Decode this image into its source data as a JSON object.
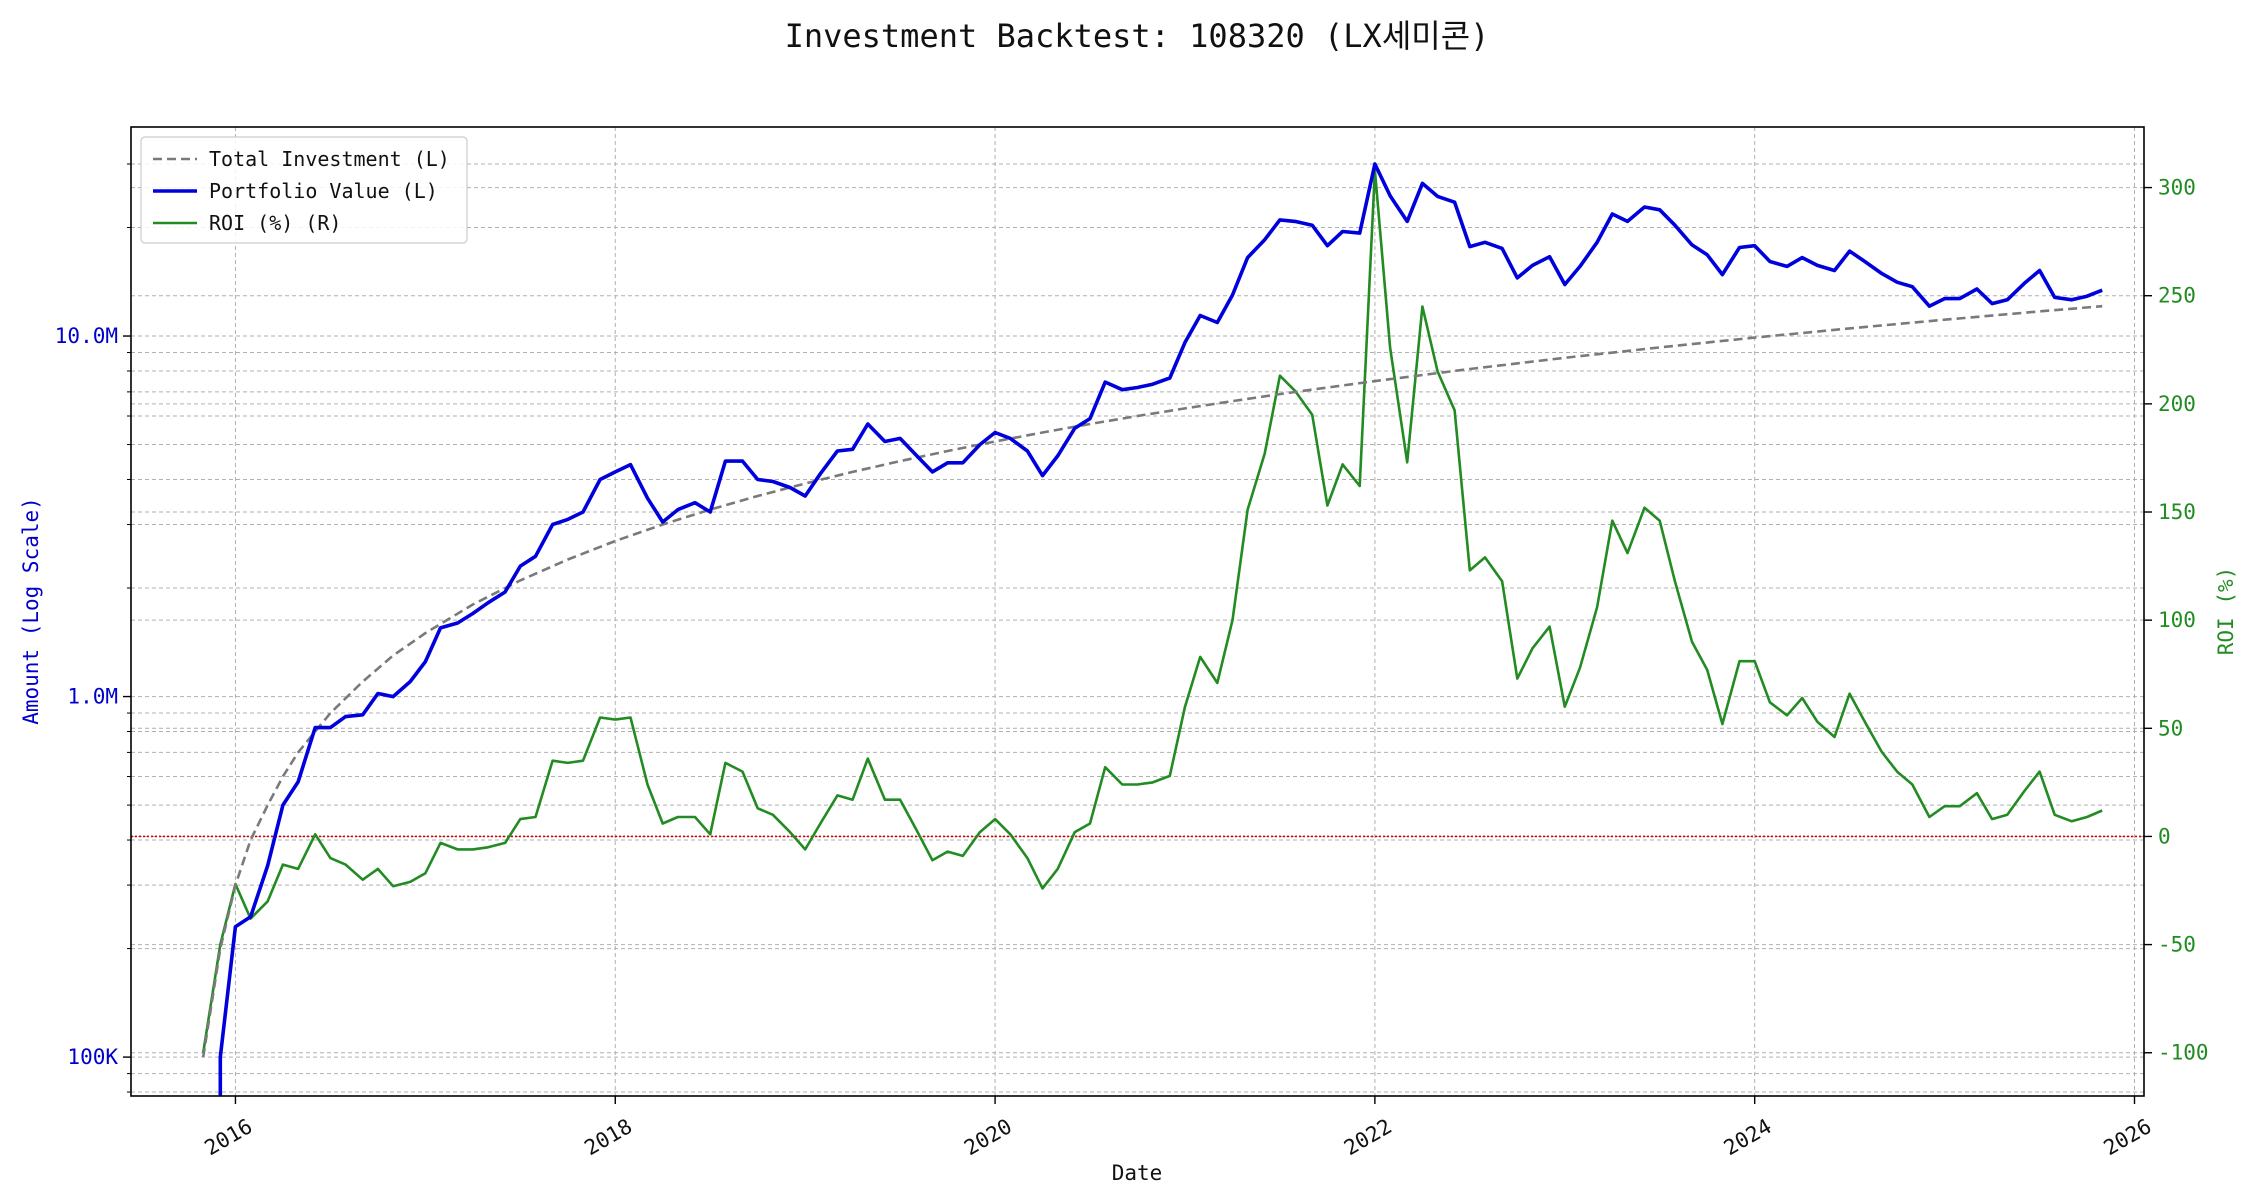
{
  "chart_data": {
    "type": "line",
    "title": "Investment Backtest: 108320 (LX세미콘)",
    "xlabel": "Date",
    "ylabel_left": "Amount (Log Scale)",
    "ylabel_right": "ROI (%)",
    "left_scale": "log",
    "xlim": [
      2015.45,
      2026.05
    ],
    "ylim_left": [
      78000,
      38000000
    ],
    "ylim_right": [
      -120,
      328
    ],
    "x_ticks": [
      2016,
      2018,
      2020,
      2022,
      2024,
      2026
    ],
    "x_tick_labels": [
      "2016",
      "2018",
      "2020",
      "2022",
      "2024",
      "2026"
    ],
    "y_left_ticks": [
      100000,
      1000000,
      10000000
    ],
    "y_left_tick_labels": [
      "100K",
      "1.0M",
      "10.0M"
    ],
    "y_right_ticks": [
      -100,
      -50,
      0,
      50,
      100,
      150,
      200,
      250,
      300
    ],
    "y_right_tick_labels": [
      "-100",
      "-50",
      "0",
      "50",
      "100",
      "150",
      "200",
      "250",
      "300"
    ],
    "grid": true,
    "legend_position": "top-left",
    "zero_line_color": "#dd0000",
    "colors": {
      "total_investment": "#7a7a7a",
      "portfolio_value": "#0000dd",
      "roi": "#228b22"
    },
    "series": [
      {
        "name": "Total Investment (L)",
        "axis": "left",
        "style": "dashed",
        "x": [
          2015.83,
          2015.92,
          2016.0,
          2016.08,
          2016.17,
          2016.25,
          2016.33,
          2016.42,
          2016.5,
          2016.67,
          2016.83,
          2017.0,
          2017.25,
          2017.5,
          2017.75,
          2018.0,
          2018.25,
          2018.5,
          2018.75,
          2019.0,
          2019.25,
          2019.5,
          2019.75,
          2020.0,
          2020.25,
          2020.5,
          2020.75,
          2021.0,
          2021.25,
          2021.5,
          2021.75,
          2022.0,
          2022.5,
          2023.0,
          2023.5,
          2024.0,
          2024.5,
          2025.0,
          2025.5,
          2025.83
        ],
        "values": [
          100000,
          200000,
          300000,
          400000,
          500000,
          600000,
          700000,
          800000,
          900000,
          1100000,
          1300000,
          1500000,
          1800000,
          2100000,
          2400000,
          2700000,
          3000000,
          3300000,
          3600000,
          3900000,
          4200000,
          4500000,
          4800000,
          5100000,
          5400000,
          5700000,
          6000000,
          6300000,
          6600000,
          6900000,
          7200000,
          7500000,
          8100000,
          8700000,
          9300000,
          9900000,
          10500000,
          11100000,
          11700000,
          12100000
        ]
      },
      {
        "name": "Portfolio Value (L)",
        "axis": "left",
        "style": "solid",
        "x": [
          2015.92,
          2015.92,
          2016.0,
          2016.08,
          2016.17,
          2016.25,
          2016.33,
          2016.42,
          2016.5,
          2016.58,
          2016.67,
          2016.75,
          2016.83,
          2016.92,
          2017.0,
          2017.08,
          2017.17,
          2017.25,
          2017.33,
          2017.42,
          2017.5,
          2017.58,
          2017.67,
          2017.75,
          2017.83,
          2017.92,
          2018.0,
          2018.08,
          2018.17,
          2018.25,
          2018.33,
          2018.42,
          2018.5,
          2018.58,
          2018.67,
          2018.75,
          2018.83,
          2018.92,
          2019.0,
          2019.08,
          2019.17,
          2019.25,
          2019.33,
          2019.42,
          2019.5,
          2019.58,
          2019.67,
          2019.75,
          2019.83,
          2019.92,
          2020.0,
          2020.08,
          2020.17,
          2020.25,
          2020.33,
          2020.42,
          2020.5,
          2020.58,
          2020.67,
          2020.75,
          2020.83,
          2020.92,
          2021.0,
          2021.08,
          2021.17,
          2021.25,
          2021.33,
          2021.42,
          2021.5,
          2021.58,
          2021.67,
          2021.75,
          2021.83,
          2021.92,
          2022.0,
          2022.08,
          2022.17,
          2022.25,
          2022.33,
          2022.42,
          2022.5,
          2022.58,
          2022.67,
          2022.75,
          2022.83,
          2022.92,
          2023.0,
          2023.08,
          2023.17,
          2023.25,
          2023.33,
          2023.42,
          2023.5,
          2023.58,
          2023.67,
          2023.75,
          2023.83,
          2023.92,
          2024.0,
          2024.08,
          2024.17,
          2024.25,
          2024.33,
          2024.42,
          2024.5,
          2024.58,
          2024.67,
          2024.75,
          2024.83,
          2024.92,
          2025.0,
          2025.08,
          2025.17,
          2025.25,
          2025.33,
          2025.42,
          2025.5,
          2025.58,
          2025.67,
          2025.75,
          2025.83
        ],
        "values": [
          70000,
          100000,
          230000,
          245000,
          340000,
          500000,
          580000,
          820000,
          820000,
          880000,
          890000,
          1020000,
          1000000,
          1100000,
          1250000,
          1550000,
          1600000,
          1700000,
          1820000,
          1950000,
          2300000,
          2450000,
          3000000,
          3100000,
          3250000,
          4000000,
          4200000,
          4400000,
          3550000,
          3050000,
          3300000,
          3450000,
          3250000,
          4500000,
          4500000,
          4000000,
          3950000,
          3800000,
          3600000,
          4150000,
          4800000,
          4850000,
          5700000,
          5100000,
          5200000,
          4700000,
          4200000,
          4450000,
          4450000,
          5000000,
          5400000,
          5200000,
          4800000,
          4100000,
          4650000,
          5550000,
          5900000,
          7450000,
          7100000,
          7200000,
          7350000,
          7650000,
          9600000,
          11400000,
          10900000,
          13000000,
          16500000,
          18500000,
          21000000,
          20800000,
          20300000,
          17800000,
          19500000,
          19300000,
          30000000,
          24500000,
          20800000,
          26500000,
          24400000,
          23500000,
          17700000,
          18200000,
          17500000,
          14500000,
          15700000,
          16600000,
          13900000,
          15600000,
          18200000,
          21800000,
          20800000,
          22800000,
          22400000,
          20300000,
          17900000,
          16800000,
          14800000,
          17600000,
          17800000,
          16100000,
          15600000,
          16500000,
          15700000,
          15200000,
          17200000,
          16100000,
          14900000,
          14100000,
          13700000,
          12100000,
          12700000,
          12700000,
          13500000,
          12300000,
          12600000,
          14000000,
          15200000,
          12800000,
          12600000,
          12900000,
          13400000
        ]
      },
      {
        "name": "ROI (%) (R)",
        "axis": "right",
        "style": "solid",
        "x": [
          2015.83,
          2015.92,
          2016.0,
          2016.08,
          2016.17,
          2016.25,
          2016.33,
          2016.42,
          2016.5,
          2016.58,
          2016.67,
          2016.75,
          2016.83,
          2016.92,
          2017.0,
          2017.08,
          2017.17,
          2017.25,
          2017.33,
          2017.42,
          2017.5,
          2017.58,
          2017.67,
          2017.75,
          2017.83,
          2017.92,
          2018.0,
          2018.08,
          2018.17,
          2018.25,
          2018.33,
          2018.42,
          2018.5,
          2018.58,
          2018.67,
          2018.75,
          2018.83,
          2018.92,
          2019.0,
          2019.08,
          2019.17,
          2019.25,
          2019.33,
          2019.42,
          2019.5,
          2019.58,
          2019.67,
          2019.75,
          2019.83,
          2019.92,
          2020.0,
          2020.08,
          2020.17,
          2020.25,
          2020.33,
          2020.42,
          2020.5,
          2020.58,
          2020.67,
          2020.75,
          2020.83,
          2020.92,
          2021.0,
          2021.08,
          2021.17,
          2021.25,
          2021.33,
          2021.42,
          2021.5,
          2021.58,
          2021.67,
          2021.75,
          2021.83,
          2021.92,
          2022.0,
          2022.08,
          2022.17,
          2022.25,
          2022.33,
          2022.42,
          2022.5,
          2022.58,
          2022.67,
          2022.75,
          2022.83,
          2022.92,
          2023.0,
          2023.08,
          2023.17,
          2023.25,
          2023.33,
          2023.42,
          2023.5,
          2023.58,
          2023.67,
          2023.75,
          2023.83,
          2023.92,
          2024.0,
          2024.08,
          2024.17,
          2024.25,
          2024.33,
          2024.42,
          2024.5,
          2024.58,
          2024.67,
          2024.75,
          2024.83,
          2024.92,
          2025.0,
          2025.08,
          2025.17,
          2025.25,
          2025.33,
          2025.42,
          2025.5,
          2025.58,
          2025.67,
          2025.75,
          2025.83
        ],
        "values": [
          -100,
          -50,
          -22,
          -38,
          -30,
          -13,
          -15,
          1,
          -10,
          -13,
          -20,
          -15,
          -23,
          -21,
          -17,
          -3,
          -6,
          -6,
          -5,
          -3,
          8,
          9,
          35,
          34,
          35,
          55,
          54,
          55,
          24,
          6,
          9,
          9,
          1,
          34,
          30,
          13,
          10,
          2,
          -6,
          6,
          19,
          17,
          36,
          17,
          17,
          4,
          -11,
          -7,
          -9,
          2,
          8,
          1,
          -10,
          -24,
          -15,
          2,
          6,
          32,
          24,
          24,
          25,
          28,
          60,
          83,
          71,
          100,
          151,
          177,
          213,
          206,
          195,
          153,
          172,
          162,
          308,
          226,
          173,
          245,
          215,
          197,
          123,
          129,
          118,
          73,
          87,
          97,
          60,
          78,
          106,
          146,
          131,
          152,
          146,
          118,
          90,
          77,
          52,
          81,
          81,
          62,
          56,
          64,
          53,
          46,
          66,
          53,
          39,
          30,
          24,
          9,
          14,
          14,
          20,
          8,
          10,
          21,
          30,
          10,
          7,
          9,
          12
        ]
      }
    ]
  }
}
